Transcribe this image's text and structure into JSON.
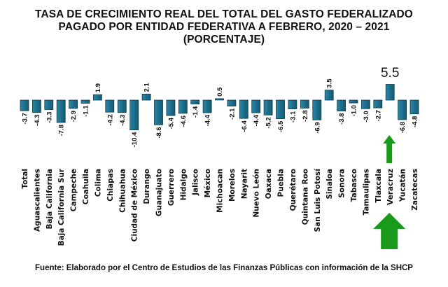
{
  "chart_data": {
    "type": "bar",
    "title": [
      "TASA DE CRECIMIENTO REAL DEL TOTAL DEL GASTO FEDERALIZADO",
      "PAGADO POR ENTIDAD FEDERATIVA A FEBRERO, 2020 – 2021",
      "(PORCENTAJE)"
    ],
    "xlabel": "",
    "ylabel": "",
    "grid": false,
    "legend": "none",
    "categories": [
      "Total",
      "Aguascalientes",
      "Baja California",
      "Baja California Sur",
      "Campeche",
      "Coahuila",
      "Colima",
      "Chiapas",
      "Chihuahua",
      "Ciudad de México",
      "Durango",
      "Guanajuato",
      "Guerrero",
      "Hidalgo",
      "Jalisco",
      "México",
      "Michoacan",
      "Morelos",
      "Nayarit",
      "Nuevo León",
      "Oaxaca",
      "Puebla",
      "Querétaro",
      "Quintana Roo",
      "San Luis Potosí",
      "Sinaloa",
      "Sonora",
      "Tabasco",
      "Tamaulipas",
      "Tlaxcala",
      "Veracruz",
      "Yucatán",
      "Zacatecas"
    ],
    "values": [
      -3.7,
      -4.3,
      -3.3,
      -7.8,
      -2.9,
      -1.1,
      1.9,
      -4.2,
      -4.3,
      -10.4,
      2.1,
      -8.6,
      -5.4,
      -4.6,
      -1.4,
      -4.4,
      0.5,
      -2.1,
      -6.4,
      -4.4,
      -5.2,
      -6.5,
      -3.1,
      -2.8,
      -6.9,
      3.5,
      -3.8,
      -1.0,
      -3.0,
      -2.7,
      5.5,
      -6.8,
      -4.8
    ],
    "data_labels": [
      "-3.7",
      "-4.3",
      "-3.3",
      "-7.8",
      "-2.9",
      "-1.1",
      "1.9",
      "-4.2",
      "-4.3",
      "-10.4",
      "2.1",
      "-8.6",
      "-5.4",
      "-4.6",
      "-1.4",
      "-4.4",
      "0.5",
      "-2.1",
      "-6.4",
      "-4.4",
      "-5.2",
      "-6.5",
      "-3.1",
      "-2.8",
      "-6.9",
      "3.5",
      "-3.8",
      "-1.0",
      "-3.0",
      "-2.7",
      "5.5",
      "-6.8",
      "-4.8"
    ],
    "ylim": [
      -11,
      6
    ],
    "highlight": {
      "category": "Veracruz",
      "label": "5.5",
      "arrow_color": "#1a9a1a"
    },
    "bar_color": "#1e6f8c",
    "bar_edge_color": "#0d3b4d"
  },
  "footer": {
    "source": "Fuente: Elaborado por el Centro de Estudios de las Finanzas Públicas con información de la SHCP"
  }
}
